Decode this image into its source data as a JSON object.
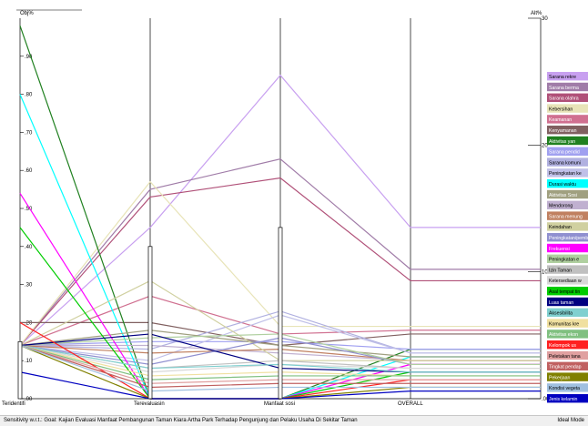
{
  "chart_data": {
    "type": "line",
    "left_axis_label": "Obj%",
    "right_axis_label": "Alt%",
    "left_ylim": [
      0,
      1
    ],
    "right_ylim": [
      0,
      30
    ],
    "left_ticks": [
      ".00",
      ".10",
      ".20",
      ".30",
      ".40",
      ".50",
      ".60",
      ".70",
      ".80",
      ".90"
    ],
    "right_ticks": [
      ".00",
      "10",
      "20",
      "30"
    ],
    "criteria": [
      {
        "label": "Teridentifi",
        "weight": 0.15
      },
      {
        "label": "Terevaluasin",
        "weight": 0.4
      },
      {
        "label": "Manfaat sosi",
        "weight": 0.45
      }
    ],
    "overall_label": "OVERALL",
    "grid": false,
    "legend_position": "right",
    "series": [
      {
        "name": "Sarana rekre",
        "color": "#c8a0f0",
        "values": [
          0.14,
          0.45,
          0.85
        ],
        "overall": 0.45
      },
      {
        "name": "Sarana berma",
        "color": "#a07ca8",
        "values": [
          0.14,
          0.55,
          0.63
        ],
        "overall": 0.34
      },
      {
        "name": "Sarana olahra",
        "color": "#b05078",
        "values": [
          0.14,
          0.53,
          0.58
        ],
        "overall": 0.31
      },
      {
        "name": "Kebersihan",
        "color": "#e8e4b8",
        "values": [
          0.14,
          0.57,
          0.19
        ],
        "overall": 0.19
      },
      {
        "name": "Keamanan",
        "color": "#d07090",
        "values": [
          0.14,
          0.27,
          0.17
        ],
        "overall": 0.18
      },
      {
        "name": "Kenyamanan",
        "color": "#806060",
        "values": [
          0.2,
          0.2,
          0.14
        ],
        "overall": 0.17
      },
      {
        "name": "Aktivitas yan",
        "color": "#208020",
        "values": [
          0.98,
          0.0,
          0.0
        ],
        "overall": 0.13
      },
      {
        "name": "Sarana pendid",
        "color": "#a0a0f0",
        "values": [
          0.14,
          0.15,
          0.15
        ],
        "overall": 0.13
      },
      {
        "name": "Sarana komuni",
        "color": "#b0b0e0",
        "values": [
          0.14,
          0.13,
          0.23
        ],
        "overall": 0.12
      },
      {
        "name": "Peningkatan ke",
        "color": "#c0c0e8",
        "values": [
          0.14,
          0.1,
          0.22
        ],
        "overall": 0.12
      },
      {
        "name": "Durasi waktu",
        "color": "#00ffff",
        "values": [
          0.8,
          0.0,
          0.0
        ],
        "overall": 0.11
      },
      {
        "name": "Aktivitas Sosi",
        "color": "#a0a080",
        "values": [
          0.14,
          0.18,
          0.14
        ],
        "overall": 0.11
      },
      {
        "name": "Mendorong",
        "color": "#c0b0d0",
        "values": [
          0.14,
          0.14,
          0.12
        ],
        "overall": 0.1
      },
      {
        "name": "Sarana menung",
        "color": "#c08060",
        "values": [
          0.14,
          0.12,
          0.13
        ],
        "overall": 0.1
      },
      {
        "name": "Keindahan",
        "color": "#d0d0a0",
        "values": [
          0.14,
          0.31,
          0.1
        ],
        "overall": 0.1
      },
      {
        "name": "Peningkatan/pemb",
        "color": "#9090d0",
        "values": [
          0.14,
          0.09,
          0.16
        ],
        "overall": 0.09
      },
      {
        "name": "Frekuensi",
        "color": "#ff00ff",
        "values": [
          0.54,
          0.0,
          0.0
        ],
        "overall": 0.09
      },
      {
        "name": "Peningkatan e",
        "color": "#b0d0a0",
        "values": [
          0.14,
          0.16,
          0.17
        ],
        "overall": 0.09
      },
      {
        "name": "Izin Taman",
        "color": "#c0c0c0",
        "values": [
          0.14,
          0.08,
          0.1
        ],
        "overall": 0.08
      },
      {
        "name": "Ketersediaan w",
        "color": "#d8d8d8",
        "values": [
          0.14,
          0.07,
          0.09
        ],
        "overall": 0.08
      },
      {
        "name": "Asal tempat tin",
        "color": "#00cc00",
        "values": [
          0.45,
          0.0,
          0.0
        ],
        "overall": 0.07
      },
      {
        "name": "Luas taman",
        "color": "#000080",
        "values": [
          0.14,
          0.17,
          0.08
        ],
        "overall": 0.07
      },
      {
        "name": "Aksesibilita",
        "color": "#80d0d0",
        "values": [
          0.14,
          0.08,
          0.09
        ],
        "overall": 0.07
      },
      {
        "name": "Komunitas kre",
        "color": "#f0e0a0",
        "values": [
          0.14,
          0.06,
          0.07
        ],
        "overall": 0.06
      },
      {
        "name": "Aktivitas ekon",
        "color": "#80c080",
        "values": [
          0.14,
          0.05,
          0.06
        ],
        "overall": 0.06
      },
      {
        "name": "Kelompok us",
        "color": "#ff2020",
        "values": [
          0.2,
          0.0,
          0.0
        ],
        "overall": 0.05
      },
      {
        "name": "Peletakan tana",
        "color": "#e0a0a0",
        "values": [
          0.14,
          0.04,
          0.05
        ],
        "overall": 0.05
      },
      {
        "name": "Tingkat pendap",
        "color": "#c06060",
        "values": [
          0.14,
          0.03,
          0.04
        ],
        "overall": 0.04
      },
      {
        "name": "Pekerjaan",
        "color": "#808000",
        "values": [
          0.14,
          0.0,
          0.0
        ],
        "overall": 0.03
      },
      {
        "name": "Kondisi vegeta",
        "color": "#a0c0e0",
        "values": [
          0.14,
          0.02,
          0.03
        ],
        "overall": 0.03
      },
      {
        "name": "Jenis kelamin",
        "color": "#0000c0",
        "values": [
          0.07,
          0.0,
          0.0
        ],
        "overall": 0.02
      }
    ]
  },
  "status": {
    "left": "Sensitivity w.r.t.: Goal: Kajian Evaluasi Manfaat Pembangunan Taman Kiara Artha Park Terhadap Pengunjung dan Pelaku Usaha Di Sekitar Taman",
    "right": "Ideal Mode"
  }
}
